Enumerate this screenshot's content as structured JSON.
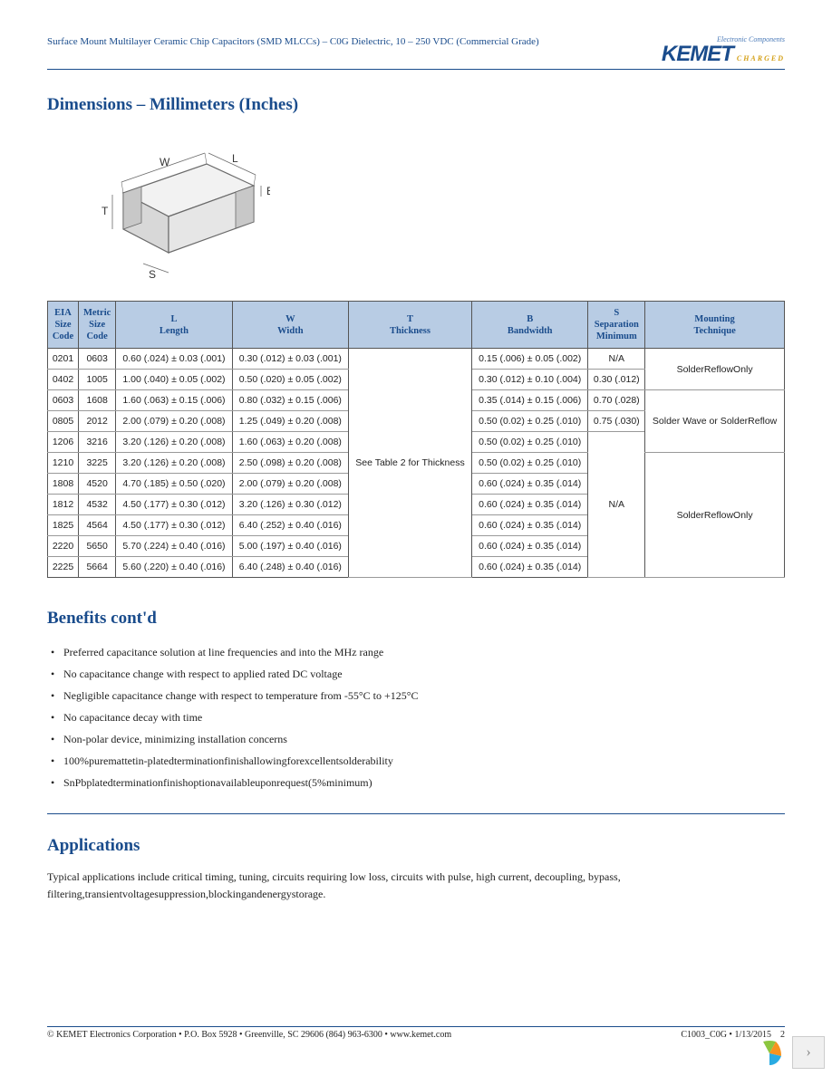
{
  "header": {
    "doc_title": "Surface Mount Multilayer Ceramic Chip Capacitors (SMD MLCCs) – C0G Dielectric, 10 – 250 VDC (Commercial Grade)",
    "logo_tag": "Electronic Components",
    "logo_main": "KEMET",
    "logo_charged": "CHARGED"
  },
  "sections": {
    "dimensions_heading": "Dimensions – Millimeters (Inches)",
    "benefits_heading": "Benefits cont'd",
    "applications_heading": "Applications"
  },
  "diagram": {
    "labels": {
      "L": "L",
      "W": "W",
      "T": "T",
      "S": "S",
      "B": "B"
    },
    "stroke": "#6a6a6a",
    "fill_top": "#f2f2f2",
    "fill_side": "#d8d8d8",
    "fill_front": "#e6e6e6",
    "band": "#c8c8c8"
  },
  "table": {
    "columns": [
      "EIA\nSize\nCode",
      "Metric\nSize\nCode",
      "L\nLength",
      "W\nWidth",
      "T\nThickness",
      "B\nBandwidth",
      "S\nSeparation\nMinimum",
      "Mounting\nTechnique"
    ],
    "header_bg": "#b8cce4",
    "header_color": "#1a4c8c",
    "border_color": "#555555",
    "thickness_merged": "See Table 2 for Thickness",
    "rows": [
      {
        "eia": "0201",
        "metric": "0603",
        "L": "0.60 (.024) ± 0.03 (.001)",
        "W": "0.30 (.012) ± 0.03 (.001)",
        "B": "0.15 (.006) ± 0.05 (.002)",
        "S": "N/A"
      },
      {
        "eia": "0402",
        "metric": "1005",
        "L": "1.00 (.040) ± 0.05 (.002)",
        "W": "0.50 (.020) ± 0.05 (.002)",
        "B": "0.30 (.012) ± 0.10 (.004)",
        "S": "0.30 (.012)"
      },
      {
        "eia": "0603",
        "metric": "1608",
        "L": "1.60 (.063) ± 0.15 (.006)",
        "W": "0.80 (.032) ± 0.15 (.006)",
        "B": "0.35 (.014) ± 0.15 (.006)",
        "S": "0.70 (.028)"
      },
      {
        "eia": "0805",
        "metric": "2012",
        "L": "2.00 (.079) ± 0.20 (.008)",
        "W": "1.25 (.049) ± 0.20 (.008)",
        "B": "0.50 (0.02) ± 0.25 (.010)",
        "S": "0.75 (.030)"
      },
      {
        "eia": "1206",
        "metric": "3216",
        "L": "3.20 (.126) ± 0.20 (.008)",
        "W": "1.60 (.063) ± 0.20 (.008)",
        "B": "0.50 (0.02) ± 0.25 (.010)"
      },
      {
        "eia": "1210",
        "metric": "3225",
        "L": "3.20 (.126) ± 0.20 (.008)",
        "W": "2.50 (.098) ± 0.20 (.008)",
        "B": "0.50 (0.02) ± 0.25 (.010)"
      },
      {
        "eia": "1808",
        "metric": "4520",
        "L": "4.70 (.185) ± 0.50 (.020)",
        "W": "2.00 (.079) ± 0.20 (.008)",
        "B": "0.60 (.024) ± 0.35 (.014)"
      },
      {
        "eia": "1812",
        "metric": "4532",
        "L": "4.50 (.177) ± 0.30 (.012)",
        "W": "3.20 (.126) ± 0.30 (.012)",
        "B": "0.60 (.024) ± 0.35 (.014)"
      },
      {
        "eia": "1825",
        "metric": "4564",
        "L": "4.50 (.177) ± 0.30 (.012)",
        "W": "6.40 (.252) ± 0.40 (.016)",
        "B": "0.60 (.024) ± 0.35 (.014)"
      },
      {
        "eia": "2220",
        "metric": "5650",
        "L": "5.70 (.224) ± 0.40 (.016)",
        "W": "5.00 (.197) ± 0.40 (.016)",
        "B": "0.60 (.024) ± 0.35 (.014)"
      },
      {
        "eia": "2225",
        "metric": "5664",
        "L": "5.60 (.220) ± 0.40 (.016)",
        "W": "6.40 (.248) ± 0.40 (.016)",
        "B": "0.60 (.024) ± 0.35 (.014)"
      }
    ],
    "sep_na": "N/A",
    "mounting": {
      "reflow_only_1": "SolderReflowOnly",
      "wave_or_reflow": "Solder Wave or SolderReflow",
      "reflow_only_2": "SolderReflowOnly"
    }
  },
  "benefits": [
    "Preferred capacitance solution at line frequencies and into the MHz range",
    "No capacitance change with respect to applied rated DC voltage",
    "Negligible capacitance change with respect to temperature from -55°C to +125°C",
    "No capacitance decay with time",
    "Non-polar device, minimizing installation concerns",
    "100%puremattetin-platedterminationfinishallowingforexcellentsolderability",
    "SnPbplatedterminationfinishoptionavailableuponrequest(5%minimum)"
  ],
  "applications_text": "Typical applications include critical timing, tuning, circuits requiring low loss, circuits with pulse, high current, decoupling, bypass, filtering,transientvoltagesuppression,blockingandenergystorage.",
  "footer": {
    "left": "© KEMET Electronics Corporation • P.O. Box 5928 • Greenville, SC 29606 (864) 963-6300 • www.kemet.com",
    "right": "C1003_C0G • 1/13/2015",
    "page": "2"
  }
}
